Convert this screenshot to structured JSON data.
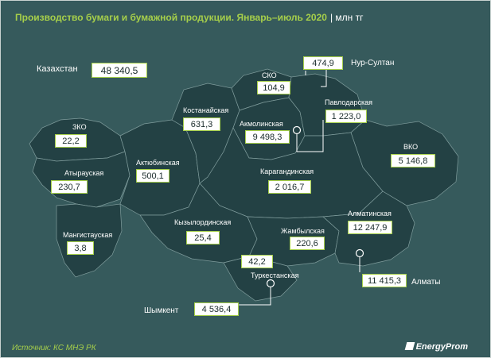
{
  "header": {
    "title": "Производство бумаги и бумажной продукции. Январь–июль 2020",
    "unit": "| млн тг"
  },
  "total": {
    "label": "Казахстан",
    "value": "48 340,5"
  },
  "regions": [
    {
      "key": "zko",
      "name": "ЗКО",
      "value": "22,2",
      "value_num": 22.2
    },
    {
      "key": "atyrau",
      "name": "Атырауская",
      "value": "230,7",
      "value_num": 230.7
    },
    {
      "key": "mangystau",
      "name": "Мангистауская",
      "value": "3,8",
      "value_num": 3.8
    },
    {
      "key": "aktobe",
      "name": "Актюбинская",
      "value": "500,1",
      "value_num": 500.1
    },
    {
      "key": "kostanay",
      "name": "Костанайская",
      "value": "631,3",
      "value_num": 631.3
    },
    {
      "key": "sko",
      "name": "СКО",
      "value": "104,9",
      "value_num": 104.9
    },
    {
      "key": "akmola",
      "name": "Акмолинская",
      "value": "9 498,3",
      "value_num": 9498.3
    },
    {
      "key": "pavlodar",
      "name": "Павлодарская",
      "value": "1 223,0",
      "value_num": 1223.0
    },
    {
      "key": "vko",
      "name": "ВКО",
      "value": "5 146,8",
      "value_num": 5146.8
    },
    {
      "key": "karaganda",
      "name": "Карагандинская",
      "value": "2 016,7",
      "value_num": 2016.7
    },
    {
      "key": "kyzylorda",
      "name": "Кызылординская",
      "value": "25,4",
      "value_num": 25.4
    },
    {
      "key": "zhambyl",
      "name": "Жамбылская",
      "value": "220,6",
      "value_num": 220.6
    },
    {
      "key": "almaty_obl",
      "name": "Алматинская",
      "value": "12 247,9",
      "value_num": 12247.9
    },
    {
      "key": "turkestan",
      "name": "Туркестанская",
      "value": "42,2",
      "value_num": 42.2
    }
  ],
  "cities": [
    {
      "key": "nur_sultan",
      "name": "Нур-Султан",
      "value": "474,9",
      "value_num": 474.9
    },
    {
      "key": "almaty",
      "name": "Алматы",
      "value": "11 415,3",
      "value_num": 11415.3
    },
    {
      "key": "shymkent",
      "name": "Шымкент",
      "value": "4 536,4",
      "value_num": 4536.4
    }
  ],
  "footer": {
    "source": "Источник: КС МНЭ РК",
    "brand": "EnergyProm"
  },
  "colors": {
    "background": "#365a5c",
    "land": "#234144",
    "accent": "#a6cf4a",
    "label_box": "#ffffff"
  }
}
